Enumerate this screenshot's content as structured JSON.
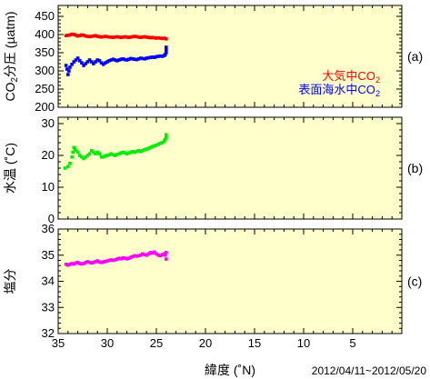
{
  "chart_data": [
    {
      "type": "scatter",
      "panel_tag": "(a)",
      "ylabel": "CO₂分圧 (µatm)",
      "ylim": [
        200,
        480
      ],
      "yticks": [
        200,
        250,
        300,
        350,
        400,
        450
      ],
      "xlim": [
        35,
        0
      ],
      "grid": false,
      "legend_position": "bottom-right",
      "series": [
        {
          "name": "大気中CO₂",
          "color": "#ff0000",
          "x": [
            34.2,
            34.0,
            33.8,
            33.6,
            33.4,
            33.2,
            33.0,
            32.8,
            32.6,
            32.4,
            32.2,
            32.0,
            31.8,
            31.6,
            31.4,
            31.2,
            31.0,
            30.8,
            30.6,
            30.4,
            30.2,
            30.0,
            29.8,
            29.6,
            29.4,
            29.2,
            29.0,
            28.8,
            28.6,
            28.4,
            28.2,
            28.0,
            27.8,
            27.6,
            27.4,
            27.2,
            27.0,
            26.8,
            26.6,
            26.4,
            26.2,
            26.0,
            25.8,
            25.6,
            25.4,
            25.2,
            25.0,
            24.8,
            24.6,
            24.4,
            24.2,
            24.0
          ],
          "y": [
            397,
            398,
            399,
            401,
            400,
            398,
            396,
            397,
            399,
            398,
            396,
            395,
            394,
            395,
            396,
            397,
            395,
            394,
            393,
            394,
            395,
            394,
            393,
            393,
            392,
            393,
            394,
            393,
            392,
            393,
            394,
            393,
            392,
            393,
            394,
            395,
            394,
            393,
            392,
            393,
            394,
            393,
            392,
            391,
            392,
            391,
            390,
            391,
            390,
            389,
            390,
            388
          ]
        },
        {
          "name": "表面海水中CO₂",
          "color": "#0000ff",
          "x": [
            34.2,
            34.1,
            34.0,
            33.9,
            33.8,
            33.6,
            33.4,
            33.2,
            33.0,
            32.8,
            32.6,
            32.4,
            32.2,
            32.0,
            31.8,
            31.6,
            31.4,
            31.2,
            31.0,
            30.8,
            30.6,
            30.4,
            30.2,
            30.0,
            29.8,
            29.6,
            29.4,
            29.2,
            29.0,
            28.8,
            28.6,
            28.4,
            28.2,
            28.0,
            27.8,
            27.6,
            27.4,
            27.2,
            27.0,
            26.8,
            26.6,
            26.4,
            26.2,
            26.0,
            25.8,
            25.6,
            25.4,
            25.2,
            25.0,
            24.8,
            24.6,
            24.4,
            24.2,
            24.1,
            24.0,
            24.0,
            24.0
          ],
          "y": [
            315,
            305,
            290,
            300,
            310,
            318,
            325,
            330,
            335,
            328,
            322,
            315,
            320,
            325,
            330,
            325,
            320,
            325,
            330,
            328,
            322,
            318,
            322,
            325,
            328,
            330,
            332,
            330,
            328,
            330,
            332,
            333,
            331,
            330,
            332,
            334,
            333,
            332,
            331,
            333,
            335,
            334,
            333,
            335,
            336,
            337,
            338,
            337,
            339,
            340,
            341,
            340,
            342,
            345,
            350,
            358,
            365
          ]
        }
      ]
    },
    {
      "type": "scatter",
      "panel_tag": "(b)",
      "ylabel": "水温 (˚C)",
      "ylim": [
        0,
        32
      ],
      "yticks": [
        0,
        10,
        20,
        30
      ],
      "xlim": [
        35,
        0
      ],
      "grid": false,
      "series": [
        {
          "color": "#00ee00",
          "x": [
            34.3,
            34.0,
            33.8,
            33.6,
            33.5,
            33.4,
            33.3,
            33.2,
            33.0,
            32.8,
            32.6,
            32.4,
            32.2,
            32.0,
            31.8,
            31.6,
            31.4,
            31.2,
            31.0,
            30.8,
            30.6,
            30.4,
            30.2,
            30.0,
            29.8,
            29.6,
            29.4,
            29.2,
            29.0,
            28.8,
            28.6,
            28.4,
            28.2,
            28.0,
            27.8,
            27.6,
            27.4,
            27.2,
            27.0,
            26.8,
            26.6,
            26.4,
            26.2,
            26.0,
            25.8,
            25.6,
            25.4,
            25.2,
            25.0,
            24.8,
            24.6,
            24.4,
            24.2,
            24.1,
            24.0,
            24.0
          ],
          "y": [
            16.0,
            16.5,
            17.5,
            19.5,
            21.0,
            22.5,
            22.0,
            21.5,
            21.0,
            20.0,
            19.5,
            19.0,
            19.5,
            20.0,
            20.5,
            21.5,
            21.0,
            20.5,
            21.0,
            20.5,
            19.5,
            19.5,
            19.8,
            20.0,
            20.2,
            20.5,
            20.2,
            20.0,
            20.3,
            20.5,
            20.8,
            21.0,
            20.8,
            20.5,
            20.8,
            21.0,
            21.2,
            21.0,
            21.3,
            21.5,
            21.2,
            21.5,
            21.8,
            22.0,
            22.2,
            22.5,
            22.8,
            23.0,
            23.2,
            23.5,
            23.8,
            24.0,
            24.5,
            25.0,
            25.5,
            26.5
          ]
        }
      ]
    },
    {
      "type": "scatter",
      "panel_tag": "(c)",
      "ylabel": "塩分",
      "xlabel": "緯度 (˚N)",
      "ylim": [
        32,
        36
      ],
      "yticks": [
        32,
        33,
        34,
        35,
        36
      ],
      "xlim": [
        35,
        0
      ],
      "xticks": [
        35,
        30,
        25,
        20,
        15,
        10,
        5
      ],
      "grid": false,
      "series": [
        {
          "color": "#ff00ff",
          "x": [
            34.2,
            34.0,
            33.8,
            33.6,
            33.4,
            33.2,
            33.0,
            32.8,
            32.6,
            32.4,
            32.2,
            32.0,
            31.8,
            31.6,
            31.4,
            31.2,
            31.0,
            30.8,
            30.6,
            30.4,
            30.2,
            30.0,
            29.8,
            29.6,
            29.4,
            29.2,
            29.0,
            28.8,
            28.6,
            28.4,
            28.2,
            28.0,
            27.8,
            27.6,
            27.4,
            27.2,
            27.0,
            26.8,
            26.6,
            26.4,
            26.2,
            26.0,
            25.8,
            25.6,
            25.4,
            25.2,
            25.0,
            24.8,
            24.6,
            24.4,
            24.2,
            24.1,
            24.0,
            24.0
          ],
          "y": [
            34.65,
            34.62,
            34.65,
            34.68,
            34.66,
            34.7,
            34.72,
            34.68,
            34.66,
            34.68,
            34.72,
            34.75,
            34.72,
            34.7,
            34.72,
            34.75,
            34.78,
            34.74,
            34.72,
            34.74,
            34.76,
            34.78,
            34.8,
            34.82,
            34.8,
            34.82,
            34.85,
            34.88,
            34.86,
            34.9,
            34.88,
            34.86,
            34.88,
            34.92,
            34.95,
            34.98,
            34.96,
            34.98,
            35.0,
            35.05,
            35.02,
            35.0,
            35.05,
            35.1,
            35.08,
            35.12,
            35.05,
            35.0,
            34.98,
            35.02,
            35.05,
            35.0,
            34.85,
            35.1
          ]
        }
      ]
    }
  ],
  "date_range": "2012/04/11~2012/05/20",
  "background_color": "#ffffcc"
}
